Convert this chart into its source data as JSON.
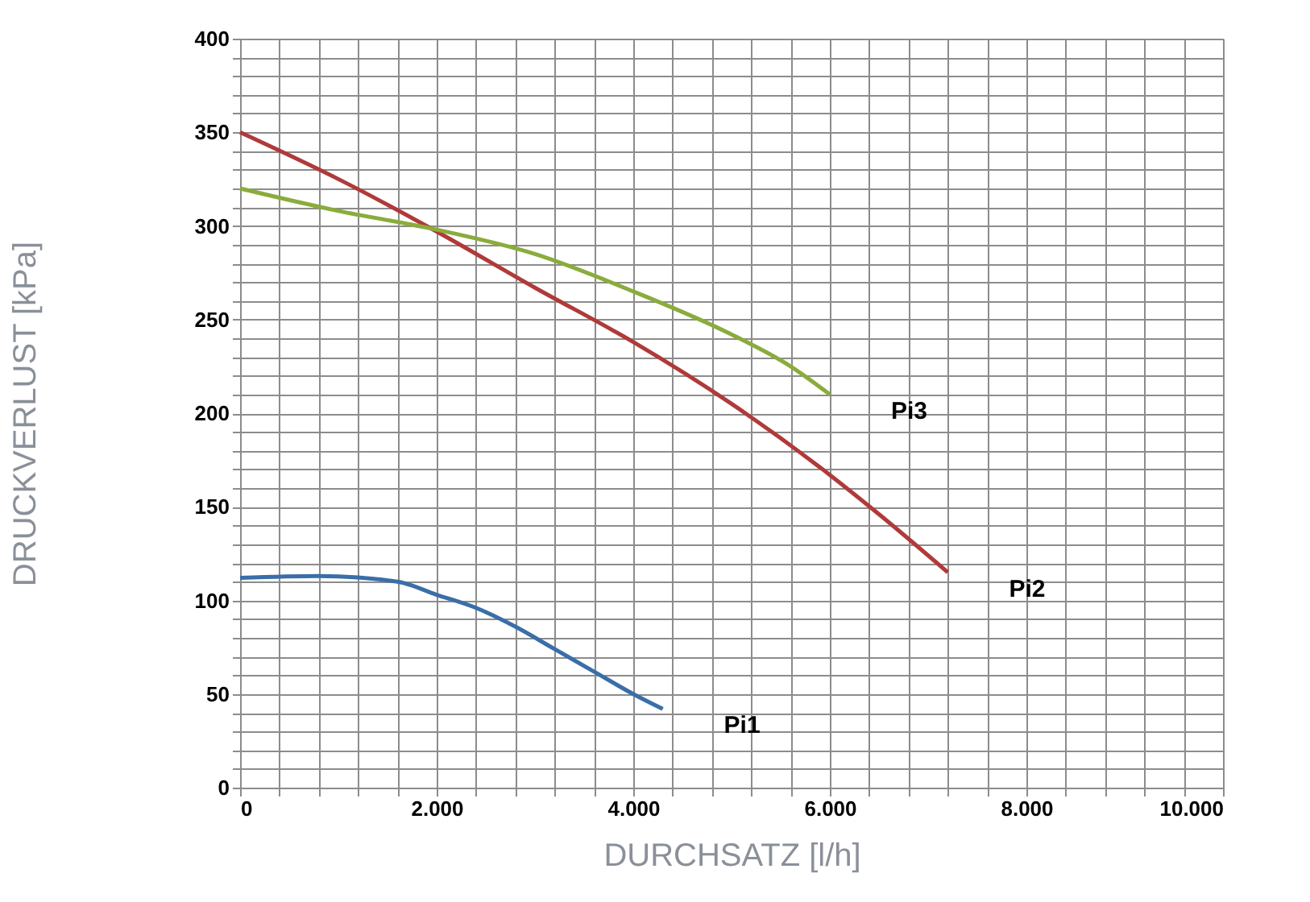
{
  "chart_data": {
    "type": "line",
    "xlabel": "DURCHSATZ [l/h]",
    "ylabel": "DRUCKVERLUST [kPa]",
    "series": [
      {
        "name": "Pi1",
        "color": "#3a6ea8",
        "x": [
          0,
          800,
          1600,
          2000,
          2400,
          2800,
          3200,
          3600,
          4000,
          4300
        ],
        "values": [
          112,
          113,
          110,
          103,
          96,
          86,
          74,
          62,
          50,
          42
        ]
      },
      {
        "name": "Pi2",
        "color": "#b03a3a",
        "x": [
          0,
          1000,
          2000,
          3000,
          4000,
          5000,
          6000,
          6500,
          7200
        ],
        "values": [
          350,
          325,
          297,
          267,
          238,
          205,
          167,
          146,
          115
        ]
      },
      {
        "name": "Pi3",
        "color": "#8aac3c",
        "x": [
          0,
          1000,
          2000,
          3000,
          4000,
          5000,
          5600,
          6000
        ],
        "values": [
          320,
          308,
          298,
          285,
          265,
          242,
          225,
          210
        ]
      }
    ],
    "xlim": [
      0,
      10000
    ],
    "xticks": [
      0,
      {
        "value": 400,
        "label": null
      },
      {
        "value": 800,
        "label": null
      },
      {
        "value": 1200,
        "label": null
      },
      {
        "value": 1600,
        "label": null
      },
      {
        "value": 2000,
        "label": "2.000"
      },
      {
        "value": 2400,
        "label": null
      },
      {
        "value": 2800,
        "label": null
      },
      {
        "value": 3200,
        "label": null
      },
      {
        "value": 3600,
        "label": null
      },
      {
        "value": 4000,
        "label": "4.000"
      },
      {
        "value": 4400,
        "label": null
      },
      {
        "value": 4800,
        "label": null
      },
      {
        "value": 5200,
        "label": null
      },
      {
        "value": 5600,
        "label": null
      },
      {
        "value": 6000,
        "label": "6.000"
      },
      {
        "value": 6400,
        "label": null
      },
      {
        "value": 6800,
        "label": null
      },
      {
        "value": 7200,
        "label": null
      },
      {
        "value": 7600,
        "label": null
      },
      {
        "value": 8000,
        "label": "8.000"
      },
      {
        "value": 8400,
        "label": null
      },
      {
        "value": 8800,
        "label": null
      },
      {
        "value": 9200,
        "label": null
      },
      {
        "value": 9600,
        "label": null
      },
      {
        "value": 10000,
        "label": "10.000"
      }
    ],
    "ylim": [
      0,
      400
    ],
    "yticks": [
      0,
      {
        "value": 10,
        "label": null
      },
      {
        "value": 20,
        "label": null
      },
      {
        "value": 30,
        "label": null
      },
      {
        "value": 40,
        "label": null
      },
      50,
      {
        "value": 60,
        "label": null
      },
      {
        "value": 70,
        "label": null
      },
      {
        "value": 80,
        "label": null
      },
      {
        "value": 90,
        "label": null
      },
      100,
      {
        "value": 110,
        "label": null
      },
      {
        "value": 120,
        "label": null
      },
      {
        "value": 130,
        "label": null
      },
      {
        "value": 140,
        "label": null
      },
      150,
      {
        "value": 160,
        "label": null
      },
      {
        "value": 170,
        "label": null
      },
      {
        "value": 180,
        "label": null
      },
      {
        "value": 190,
        "label": null
      },
      200,
      {
        "value": 210,
        "label": null
      },
      {
        "value": 220,
        "label": null
      },
      {
        "value": 230,
        "label": null
      },
      {
        "value": 240,
        "label": null
      },
      250,
      {
        "value": 260,
        "label": null
      },
      {
        "value": 270,
        "label": null
      },
      {
        "value": 280,
        "label": null
      },
      {
        "value": 290,
        "label": null
      },
      300,
      {
        "value": 310,
        "label": null
      },
      {
        "value": 320,
        "label": null
      },
      {
        "value": 330,
        "label": null
      },
      {
        "value": 340,
        "label": null
      },
      350,
      {
        "value": 360,
        "label": null
      },
      {
        "value": 370,
        "label": null
      },
      {
        "value": 380,
        "label": null
      },
      {
        "value": 390,
        "label": null
      },
      400
    ],
    "grid": true,
    "legend": false,
    "marker": "none",
    "line_style": "solid"
  }
}
